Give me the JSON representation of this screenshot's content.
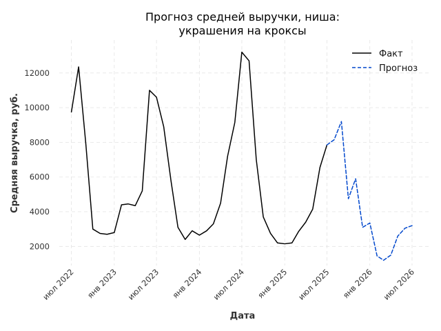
{
  "chart_data": {
    "type": "line",
    "title": [
      "Прогноз средней выручки, ниша:",
      "украшения на кроксы"
    ],
    "xlabel": "Дата",
    "ylabel": "Средняя выручка, руб.",
    "x_ticks": [
      {
        "date": "2022-07",
        "label": "июл 2022"
      },
      {
        "date": "2023-01",
        "label": "янв 2023"
      },
      {
        "date": "2023-07",
        "label": "июл 2023"
      },
      {
        "date": "2024-01",
        "label": "янв 2024"
      },
      {
        "date": "2024-07",
        "label": "июл 2024"
      },
      {
        "date": "2025-01",
        "label": "янв 2025"
      },
      {
        "date": "2025-07",
        "label": "июл 2025"
      },
      {
        "date": "2026-01",
        "label": "янв 2026"
      },
      {
        "date": "2026-07",
        "label": "июл 2026"
      }
    ],
    "y_ticks": [
      {
        "value": 2000,
        "label": "2000"
      },
      {
        "value": 4000,
        "label": "4000"
      },
      {
        "value": 6000,
        "label": "6000"
      },
      {
        "value": 8000,
        "label": "8000"
      },
      {
        "value": 10000,
        "label": "10000"
      },
      {
        "value": 12000,
        "label": "12000"
      }
    ],
    "xlim": [
      "2022-05-10",
      "2026-09-10"
    ],
    "ylim": [
      900,
      13900
    ],
    "grid": true,
    "legend_position": "top-right",
    "series": [
      {
        "name": "Факт",
        "color": "#000000",
        "style": "solid",
        "x": [
          "2022-07",
          "2022-08",
          "2022-09",
          "2022-10",
          "2022-11",
          "2022-12",
          "2023-01",
          "2023-02",
          "2023-03",
          "2023-04",
          "2023-05",
          "2023-06",
          "2023-07",
          "2023-08",
          "2023-09",
          "2023-10",
          "2023-11",
          "2023-12",
          "2024-01",
          "2024-02",
          "2024-03",
          "2024-04",
          "2024-05",
          "2024-06",
          "2024-07",
          "2024-08",
          "2024-09",
          "2024-10",
          "2024-11",
          "2024-12",
          "2025-01",
          "2025-02",
          "2025-03",
          "2025-04",
          "2025-05",
          "2025-06",
          "2025-07"
        ],
        "y": [
          9750,
          12350,
          7900,
          3000,
          2750,
          2700,
          2800,
          4400,
          4450,
          4350,
          5200,
          11000,
          10600,
          8900,
          5800,
          3100,
          2400,
          2900,
          2650,
          2900,
          3300,
          4500,
          7200,
          9150,
          13200,
          12700,
          7000,
          3700,
          2750,
          2200,
          2150,
          2200,
          2850,
          3400,
          4150,
          6550,
          7850
        ]
      },
      {
        "name": "Прогноз",
        "color": "#0047cc",
        "style": "dashed",
        "x": [
          "2025-07",
          "2025-08",
          "2025-09",
          "2025-10",
          "2025-11",
          "2025-12",
          "2026-01",
          "2026-02",
          "2026-03",
          "2026-04",
          "2026-05",
          "2026-06",
          "2026-07"
        ],
        "y": [
          7850,
          8150,
          9200,
          4750,
          5900,
          3100,
          3350,
          1450,
          1200,
          1500,
          2600,
          3050,
          3200
        ]
      }
    ]
  }
}
